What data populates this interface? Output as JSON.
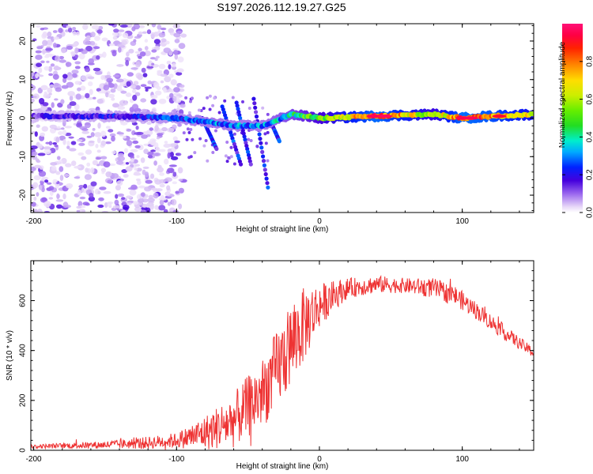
{
  "title": "S197.2026.112.19.27.G25",
  "chart_data": [
    {
      "type": "heatmap",
      "name": "spectrogram",
      "xlabel": "Height of straight line (km)",
      "ylabel": "Frequency (Hz)",
      "xlim": [
        -202,
        150
      ],
      "ylim": [
        -24.5,
        24.5
      ],
      "xticks": [
        -200,
        -100,
        0,
        100
      ],
      "yticks": [
        -20,
        -10,
        0,
        10,
        20
      ],
      "colorbar": {
        "label": "Normalized spectral amplitude",
        "range": [
          0,
          1
        ],
        "ticks": [
          0.0,
          0.2,
          0.4,
          0.6,
          0.8
        ]
      },
      "ridge": {
        "description_x": [
          -200,
          -150,
          -100,
          -80,
          -60,
          -40,
          -20,
          0,
          40,
          80,
          100,
          120,
          150
        ],
        "freq_hz": [
          0.5,
          0.5,
          0,
          -1,
          -2,
          -2,
          1,
          0,
          0.5,
          1,
          0,
          0.5,
          1
        ],
        "amplitude": [
          0.15,
          0.2,
          0.25,
          0.3,
          0.3,
          0.3,
          0.4,
          0.55,
          0.95,
          0.6,
          0.95,
          0.9,
          0.7
        ]
      }
    },
    {
      "type": "line",
      "name": "snr",
      "xlabel": "Height of straight line (km)",
      "ylabel": "SNR (10 * v/v)",
      "xlim": [
        -202,
        150
      ],
      "ylim": [
        0,
        760
      ],
      "xticks": [
        -200,
        -100,
        0,
        100
      ],
      "yticks": [
        0,
        200,
        400,
        600
      ],
      "color": "#ee3333",
      "envelope": {
        "x": [
          -202,
          -150,
          -120,
          -100,
          -80,
          -60,
          -40,
          -30,
          -20,
          -10,
          0,
          10,
          20,
          40,
          60,
          80,
          95,
          110,
          130,
          150
        ],
        "base": [
          15,
          22,
          30,
          40,
          70,
          120,
          230,
          320,
          420,
          510,
          580,
          620,
          650,
          665,
          660,
          650,
          620,
          560,
          470,
          390
        ],
        "noise": [
          8,
          15,
          25,
          30,
          70,
          110,
          140,
          160,
          170,
          150,
          90,
          60,
          40,
          35,
          30,
          40,
          40,
          35,
          30,
          20
        ]
      }
    }
  ]
}
